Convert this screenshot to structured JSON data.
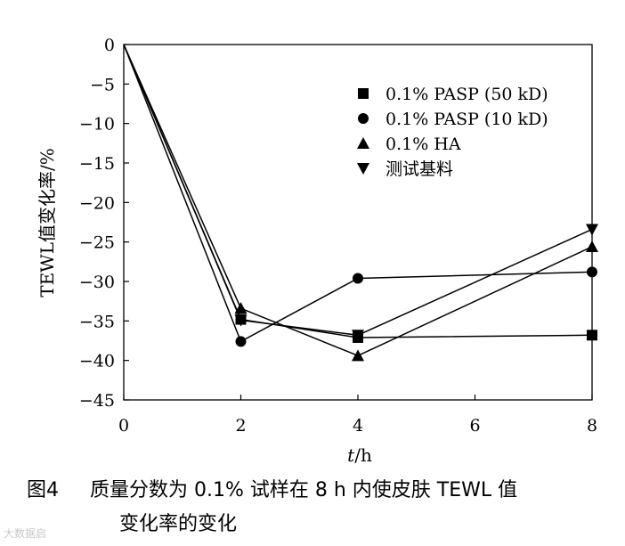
{
  "chart_data": {
    "type": "line",
    "xlabel_italic": "t",
    "xlabel_unit": "/h",
    "ylabel": "TEWL值变化率/%",
    "xlim": [
      0,
      8
    ],
    "ylim": [
      -45,
      0
    ],
    "x_ticks": [
      "0",
      "2",
      "4",
      "6",
      "8"
    ],
    "y_ticks": [
      "0",
      "−5",
      "−10",
      "−15",
      "−20",
      "−25",
      "−30",
      "−35",
      "−40",
      "−45"
    ],
    "grid": false,
    "legend_position": "top-right",
    "series": [
      {
        "name": "0.1% PASP (50 kD)",
        "marker": "square",
        "x": [
          0,
          2,
          4,
          8
        ],
        "y": [
          0,
          -34.8,
          -37.1,
          -36.8
        ]
      },
      {
        "name": "0.1% PASP (10 kD)",
        "marker": "circle",
        "x": [
          0,
          2,
          4,
          8
        ],
        "y": [
          0,
          -37.6,
          -29.6,
          -28.8
        ]
      },
      {
        "name": "0.1% HA",
        "marker": "triangle-up",
        "x": [
          0,
          2,
          4,
          8
        ],
        "y": [
          0,
          -33.4,
          -39.4,
          -25.6
        ]
      },
      {
        "name": "测试基料",
        "marker": "triangle-down",
        "x": [
          0,
          2,
          4,
          8
        ],
        "y": [
          0,
          -34.9,
          -36.8,
          -23.4
        ]
      }
    ]
  },
  "caption": {
    "figure_label": "图4",
    "line1": "质量分数为 0.1% 试样在 8 h 内使皮肤 TEWL 值",
    "line2": "变化率的变化"
  },
  "watermark": "大数据启"
}
